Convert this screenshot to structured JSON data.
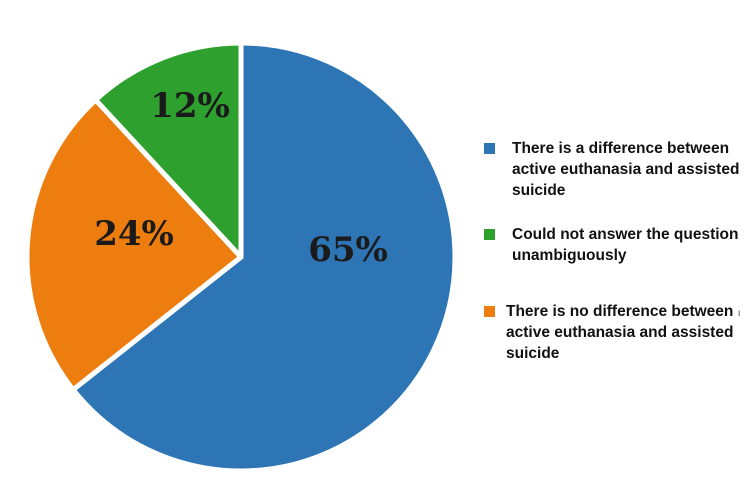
{
  "chart_data": {
    "type": "pie",
    "title": "",
    "slices": [
      {
        "label": "There is a difference between active euthanasia and assisted suicide",
        "value": 65,
        "display": "65%",
        "color": "#2e75b6"
      },
      {
        "label": "There is no difference between active euthanasia and assisted suicide",
        "value": 24,
        "display": "24%",
        "color": "#ed7d0f"
      },
      {
        "label": "Could not answer the question unambiguously",
        "value": 12,
        "display": "12%",
        "color": "#2ea02e"
      }
    ],
    "legend": {
      "placement": "right",
      "entries": [
        {
          "text": "There is a difference between active euthanasia and assisted suicide",
          "color": "#2e75b6"
        },
        {
          "text": "Could not answer the question unambiguously",
          "color": "#2ea02e"
        },
        {
          "text": "There is no difference between active euthanasia and assisted suicide",
          "color": "#ed7d0f"
        }
      ]
    }
  },
  "stray_mark": "ι"
}
